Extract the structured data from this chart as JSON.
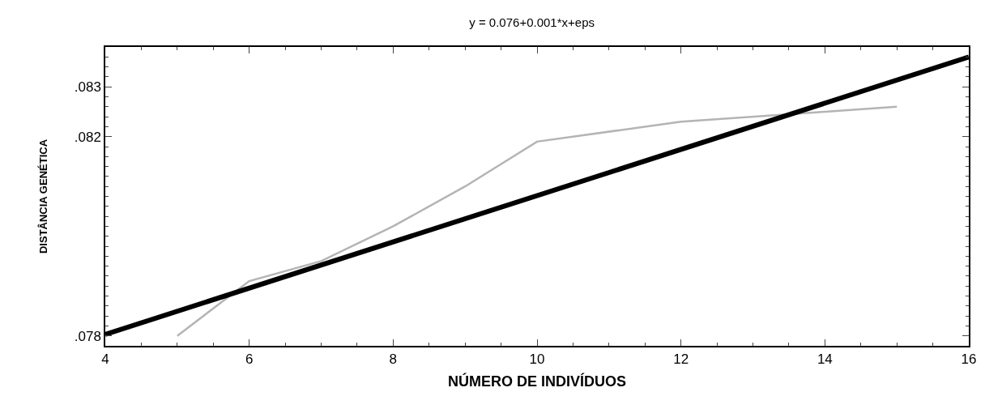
{
  "chart_data": {
    "type": "line",
    "title": "y = 0.076+0.001*x+eps",
    "xlabel": "NÚMERO DE INDIVÍDUOS",
    "ylabel": "DISTÂNCIA GENÉTICA",
    "xlim": [
      4,
      16
    ],
    "xticks": [
      4,
      6,
      8,
      10,
      12,
      14,
      16
    ],
    "ylim": [
      0.0778,
      0.0838
    ],
    "yticks": [
      {
        "value": 0.078,
        "label": ".078"
      },
      {
        "value": 0.082,
        "label": ".082"
      },
      {
        "value": 0.083,
        "label": ".083"
      }
    ],
    "grid": false,
    "marker": "none",
    "line_style": "solid",
    "series": [
      {
        "color": "#b4b4b4",
        "x": [
          5,
          6,
          7,
          8,
          9,
          10,
          12,
          14,
          15
        ],
        "values": [
          0.078,
          0.0791,
          0.0795,
          0.0802,
          0.081,
          0.0819,
          0.0823,
          0.0825,
          0.0826
        ]
      },
      {
        "color": "#000000",
        "x": [
          4,
          16
        ],
        "values": [
          0.07803,
          0.0836
        ]
      }
    ]
  }
}
